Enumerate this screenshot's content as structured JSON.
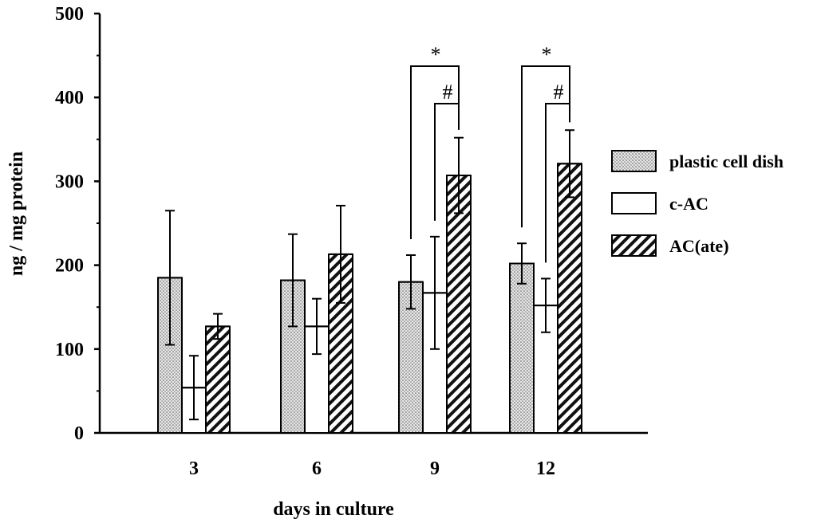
{
  "chart_data": {
    "type": "bar",
    "xlabel": "days in culture",
    "ylabel": "ng / mg protein",
    "ylim": [
      0,
      500
    ],
    "yticks": [
      0,
      100,
      200,
      300,
      400,
      500
    ],
    "categories": [
      "3",
      "6",
      "9",
      "12"
    ],
    "legend_position": "right",
    "series": [
      {
        "name": "plastic cell dish",
        "pattern": "dotted",
        "values": [
          185,
          182,
          180,
          202
        ],
        "errors": [
          80,
          55,
          32,
          24
        ]
      },
      {
        "name": "c-AC",
        "pattern": "plain",
        "values": [
          54,
          127,
          167,
          152
        ],
        "errors": [
          38,
          33,
          67,
          32
        ]
      },
      {
        "name": "AC(ate)",
        "pattern": "hatched",
        "values": [
          127,
          213,
          307,
          321
        ],
        "errors": [
          15,
          58,
          45,
          40
        ]
      }
    ],
    "significance": [
      {
        "category": "9",
        "from_series": 0,
        "to_series": 2,
        "mark": "*"
      },
      {
        "category": "9",
        "from_series": 1,
        "to_series": 2,
        "mark": "#"
      },
      {
        "category": "12",
        "from_series": 0,
        "to_series": 2,
        "mark": "*"
      },
      {
        "category": "12",
        "from_series": 1,
        "to_series": 2,
        "mark": "#"
      }
    ]
  }
}
